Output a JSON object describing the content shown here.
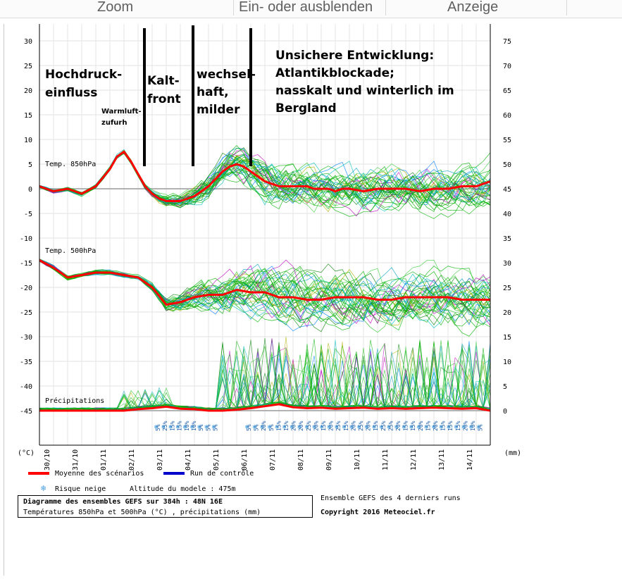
{
  "toolbar": {
    "zoom": "Zoom",
    "toggle": "Ein- oder ausblenden",
    "display": "Anzeige"
  },
  "chart_data": {
    "type": "line",
    "title": "Diagramme des ensembles GEFS sur 384h : 48N 16E",
    "subtitle": "Températures 850hPa et 500hPa (°C) , précipitations (mm)",
    "ylabel_left": "(°C)",
    "ylabel_right": "(mm)",
    "y_left_ticks": [
      30,
      25,
      20,
      15,
      10,
      5,
      0,
      -5,
      -10,
      -15,
      -20,
      -25,
      -30,
      -35,
      -40,
      -45
    ],
    "y_right_ticks": [
      75,
      70,
      65,
      60,
      55,
      50,
      45,
      40,
      35,
      30,
      25,
      20,
      15,
      10,
      5,
      0
    ],
    "ylim_left": [
      -45,
      30
    ],
    "ylim_right": [
      0,
      75
    ],
    "x_dates": [
      "30/10",
      "31/10",
      "01/11",
      "02/11",
      "03/11",
      "04/11",
      "05/11",
      "06/11",
      "07/11",
      "08/11",
      "09/11",
      "10/11",
      "11/11",
      "12/11",
      "13/11",
      "14/11"
    ],
    "x_hours_max": 384,
    "grid": true,
    "section_labels": {
      "t850": "Temp. 850hPa",
      "t500": "Temp. 500hPa",
      "precip": "Précipitations"
    },
    "legend": {
      "mean": "Moyenne des scénarios",
      "control": "Run de contrôle",
      "snow": "Risque neige",
      "altitude": "Altitude du modele : 475m"
    },
    "footer_right_1": "Ensemble GEFS des 4 derniers runs",
    "footer_right_2": "Copyright 2016 Meteociel.fr",
    "snow_risk_1": [
      "5%",
      "25%",
      "15%",
      "15%",
      "10%",
      "10%",
      "5%",
      "5%",
      "5%"
    ],
    "snow_risk_2": [
      "5%",
      "5%",
      "20%",
      "5%",
      "15%",
      "15%",
      "20%",
      "20%",
      "25%",
      "20%",
      "15%",
      "20%",
      "25%",
      "15%",
      "20%",
      "25%",
      "20%",
      "15%",
      "25%",
      "25%",
      "20%",
      "15%",
      "15%",
      "20%",
      "15%",
      "20%",
      "15%",
      "15%",
      "15%",
      "20%",
      "10%",
      "5%"
    ],
    "series": [
      {
        "name": "Moyenne des scénarios",
        "panel": "t850",
        "color": "#ff0000",
        "hours": [
          0,
          12,
          24,
          36,
          48,
          60,
          66,
          72,
          78,
          84,
          90,
          96,
          102,
          108,
          114,
          120,
          126,
          132,
          138,
          144,
          150,
          156,
          162,
          168,
          174,
          180,
          186,
          192,
          198,
          204,
          210,
          216,
          222,
          228,
          234,
          240,
          246,
          252,
          258,
          264,
          276,
          288,
          300,
          312,
          324,
          336,
          348,
          360,
          372,
          384
        ],
        "values": [
          0.5,
          -0.5,
          0,
          -1,
          0.5,
          4,
          6.5,
          7.5,
          5.5,
          3,
          0.5,
          -1,
          -2,
          -2.5,
          -2.5,
          -2.5,
          -2,
          -1.5,
          -0.5,
          0.5,
          2,
          3.5,
          4.5,
          5,
          4.5,
          3.5,
          2.5,
          1.5,
          1,
          0.5,
          0.5,
          0.5,
          0.5,
          0.5,
          0,
          0,
          0,
          -0.5,
          0,
          0,
          -0.5,
          0,
          0,
          0,
          -0.5,
          0,
          0,
          0.5,
          0.5,
          1.5
        ]
      },
      {
        "name": "Moyenne des scénarios",
        "panel": "t500",
        "color": "#ff0000",
        "hours": [
          0,
          12,
          24,
          36,
          48,
          60,
          72,
          84,
          96,
          108,
          120,
          132,
          144,
          156,
          168,
          180,
          192,
          204,
          216,
          228,
          240,
          252,
          264,
          276,
          288,
          300,
          312,
          324,
          336,
          348,
          360,
          372,
          384
        ],
        "values": [
          -14.5,
          -16,
          -18,
          -17.5,
          -17,
          -17,
          -17.5,
          -18,
          -20,
          -23.5,
          -23,
          -22,
          -21.5,
          -21.5,
          -20.5,
          -21,
          -21,
          -22,
          -22,
          -22.5,
          -22.5,
          -22,
          -22,
          -22,
          -22.5,
          -22.5,
          -22,
          -22,
          -22,
          -22,
          -22.5,
          -22.5,
          -22.5
        ]
      },
      {
        "name": "Moyenne des scénarios",
        "panel": "precip",
        "color": "#ff0000",
        "hours": [
          0,
          24,
          48,
          72,
          84,
          96,
          108,
          120,
          132,
          144,
          156,
          168,
          180,
          192,
          204,
          216,
          228,
          240,
          252,
          264,
          276,
          288,
          300,
          312,
          324,
          336,
          348,
          360,
          372,
          384
        ],
        "values": [
          0,
          0,
          0,
          0,
          0.3,
          0.5,
          0.8,
          0.4,
          0.3,
          0,
          0,
          0.2,
          0.5,
          0.9,
          1.3,
          0.7,
          0.5,
          0.6,
          0.4,
          0.5,
          0.6,
          0.4,
          0.5,
          0.4,
          0.5,
          0.6,
          0.5,
          0.4,
          0.5,
          0
        ]
      }
    ],
    "annotations": [
      {
        "id": "hochdruck",
        "lines": [
          "Hochdruck-",
          "einfluss"
        ]
      },
      {
        "id": "warmluft",
        "lines": [
          "Warmluft-",
          "zufurh"
        ]
      },
      {
        "id": "kaltfront",
        "lines": [
          "Kalt-",
          "front"
        ]
      },
      {
        "id": "wechsel",
        "lines": [
          "wechsel-",
          "haft,",
          "milder"
        ]
      },
      {
        "id": "unsicher",
        "lines": [
          "Unsichere Entwicklung:",
          "Atlantikblockade;",
          "nasskalt und winterlich im",
          "Bergland"
        ]
      }
    ]
  }
}
